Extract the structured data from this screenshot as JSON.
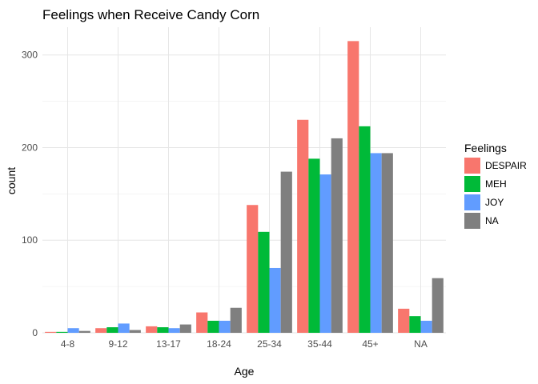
{
  "chart_data": {
    "type": "bar",
    "title": "Feelings when Receive Candy Corn",
    "xlabel": "Age",
    "ylabel": "count",
    "categories": [
      "4-8",
      "9-12",
      "13-17",
      "18-24",
      "25-34",
      "35-44",
      "45+",
      "NA"
    ],
    "series": [
      {
        "name": "DESPAIR",
        "color": "#F8766D",
        "values": [
          1,
          5,
          7,
          22,
          138,
          230,
          315,
          26
        ]
      },
      {
        "name": "MEH",
        "color": "#00BA38",
        "values": [
          1,
          6,
          6,
          13,
          109,
          188,
          223,
          18
        ]
      },
      {
        "name": "JOY",
        "color": "#619CFF",
        "values": [
          5,
          10,
          5,
          13,
          70,
          171,
          194,
          13
        ]
      },
      {
        "name": "NA",
        "color": "#7F7F7F",
        "values": [
          2,
          3,
          9,
          27,
          174,
          210,
          194,
          59
        ]
      }
    ],
    "ylim": [
      0,
      330
    ],
    "yticks": [
      0,
      100,
      200,
      300
    ],
    "grid": true,
    "legend": {
      "title": "Feelings",
      "position": "right"
    }
  }
}
